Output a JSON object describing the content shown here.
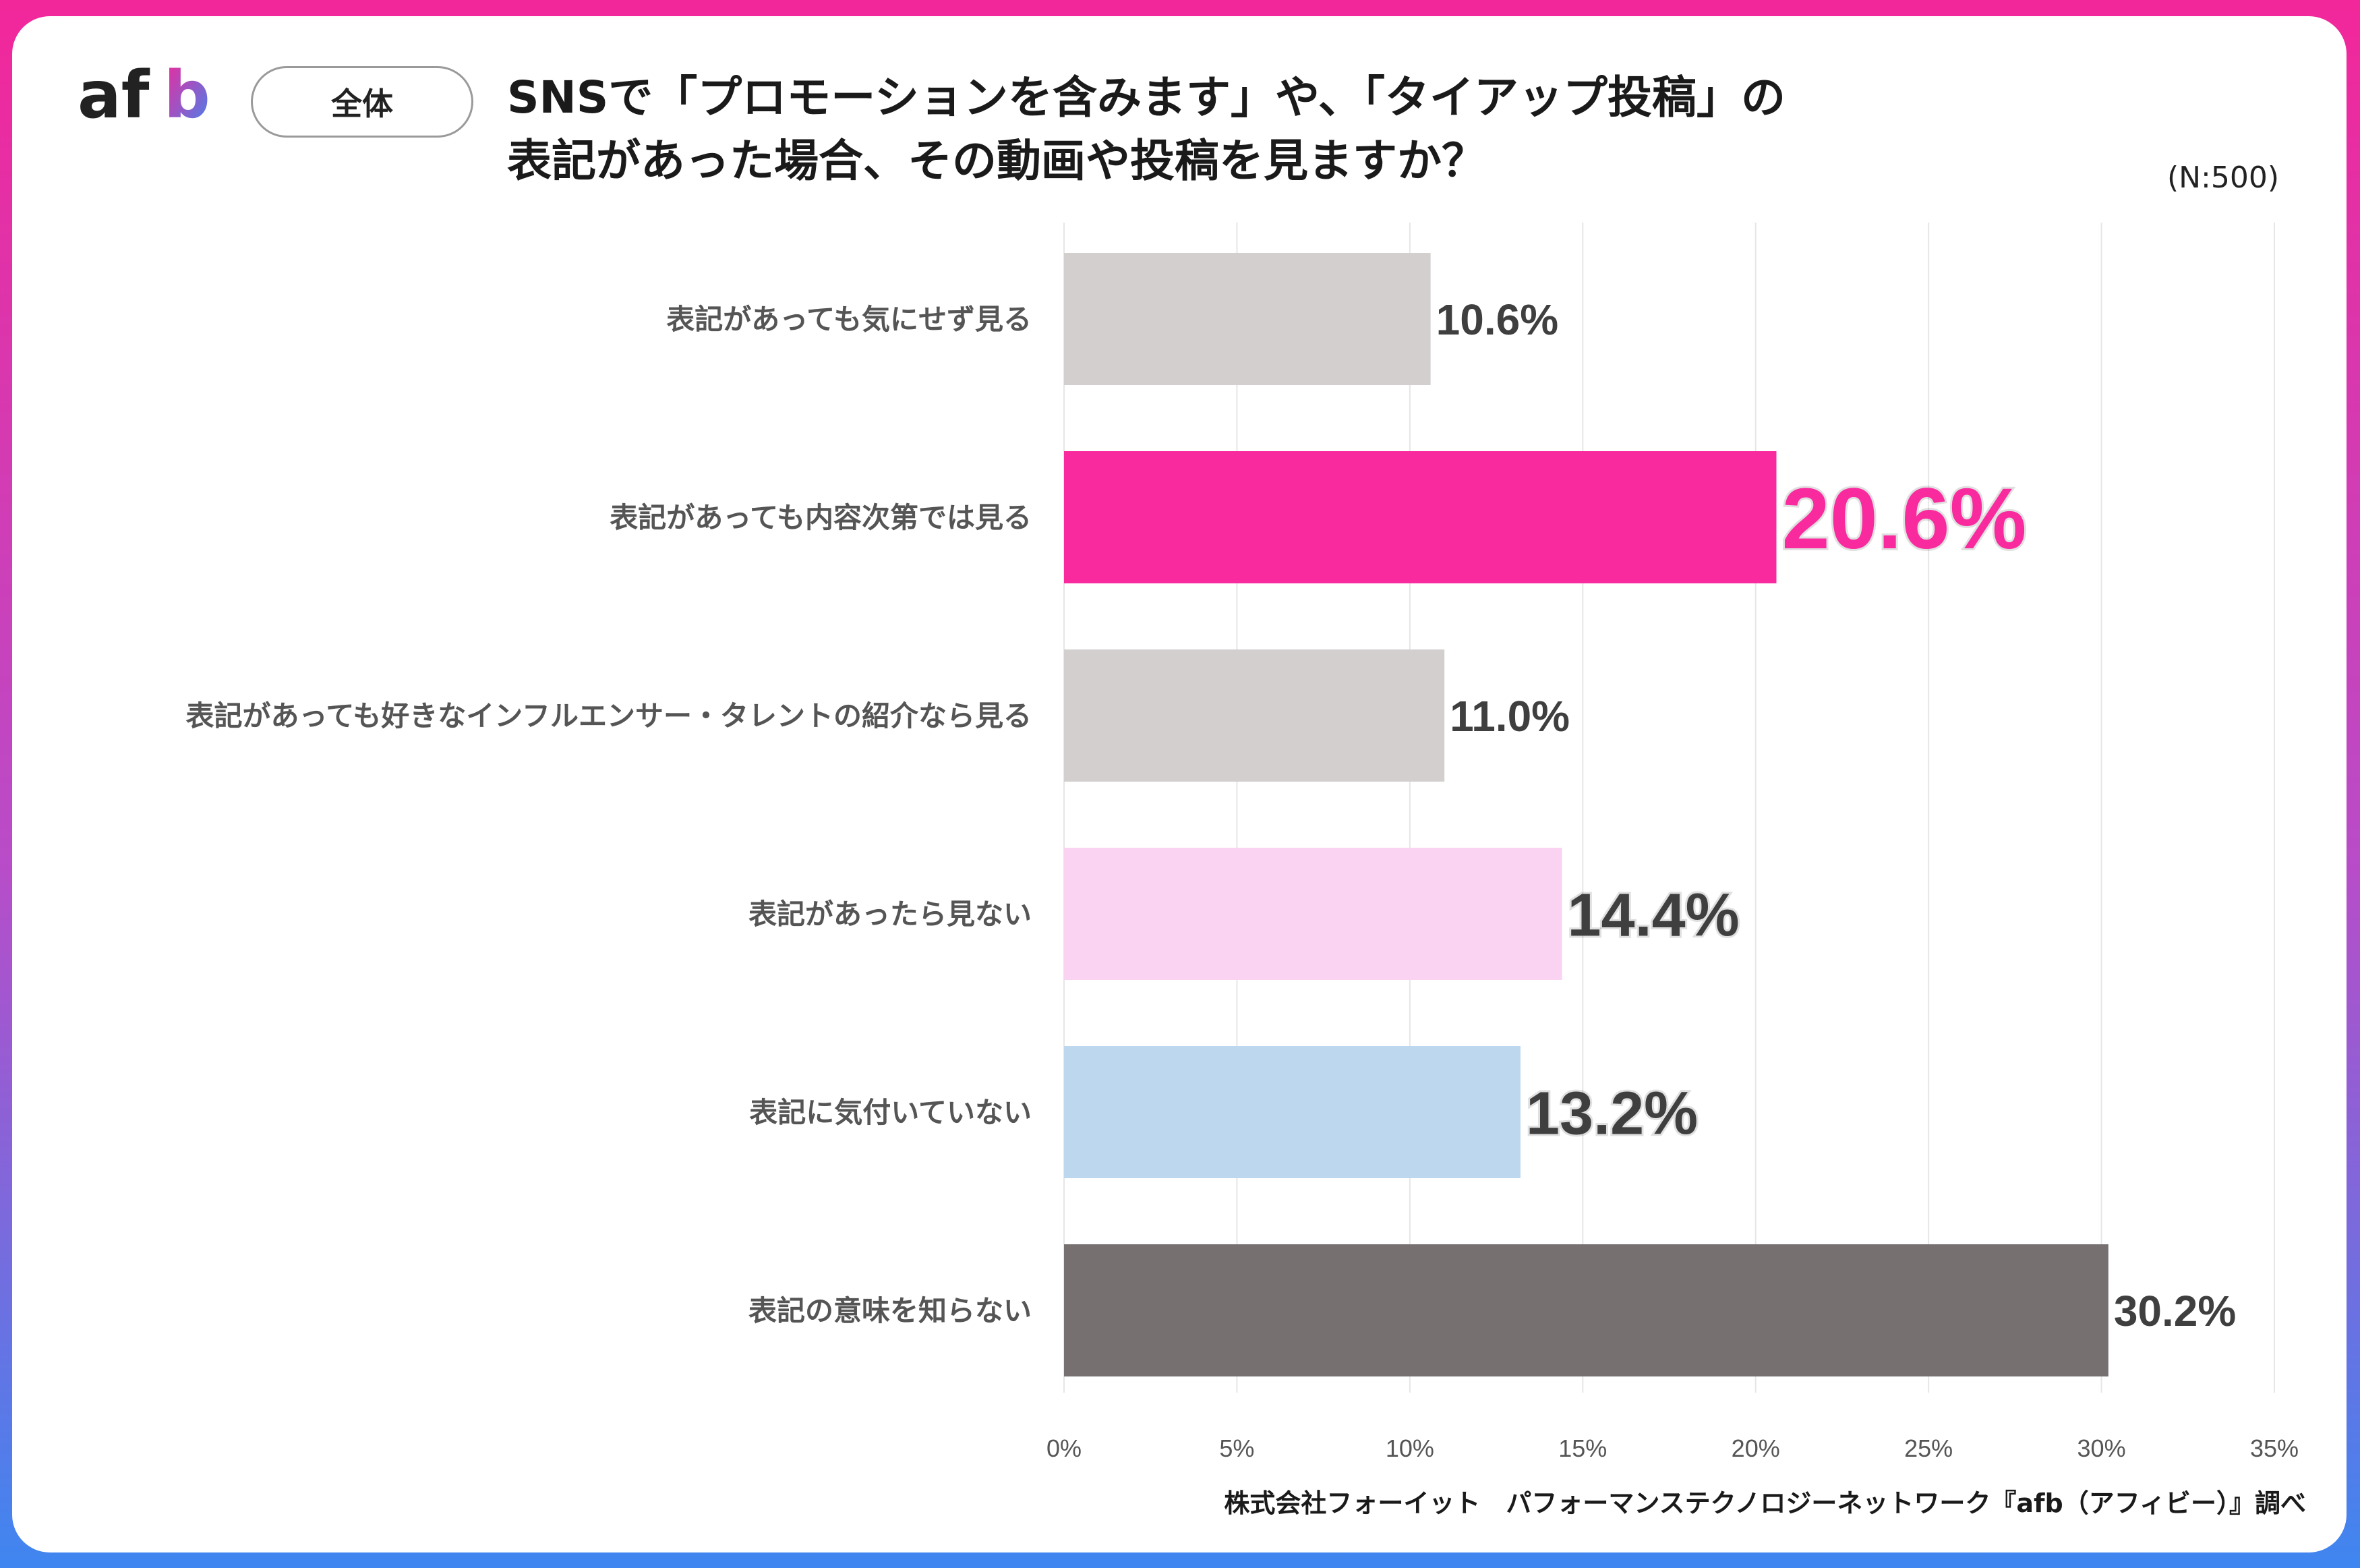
{
  "header": {
    "logo_text": "afb",
    "segment_badge": "全体",
    "title_line1": "SNSで「プロモーションを含みます」や、「タイアップ投稿」の",
    "title_line2": "表記があった場合、その動画や投稿を見ますか？",
    "sample_size": "(N:500)"
  },
  "footer": {
    "source": "株式会社フォーイット　パフォーマンステクノロジーネットワーク『afb（アフィビー）』調べ"
  },
  "colors": {
    "accent_pink": "#f82a9e",
    "light_gray": "#d3cfcf",
    "light_pink": "#f9d3f1",
    "light_blue": "#bdd7ee",
    "dark_gray": "#767070",
    "label_dark": "#3f3f3f"
  },
  "chart_data": {
    "type": "bar",
    "orientation": "horizontal",
    "title": "SNSで「プロモーションを含みます」や、「タイアップ投稿」の表記があった場合、その動画や投稿を見ますか？",
    "categories": [
      "表記があっても気にせず見る",
      "表記があっても内容次第では見る",
      "表記があっても好きなインフルエンサー・タレントの紹介なら見る",
      "表記があったら見ない",
      "表記に気付いていない",
      "表記の意味を知らない"
    ],
    "values": [
      10.6,
      20.6,
      11.0,
      14.4,
      13.2,
      30.2
    ],
    "value_labels": [
      "10.6%",
      "20.6%",
      "11.0%",
      "14.4%",
      "13.2%",
      "30.2%"
    ],
    "bar_colors": [
      "#d3cfcf",
      "#f82a9e",
      "#d3cfcf",
      "#f9d3f1",
      "#bdd7ee",
      "#767070"
    ],
    "label_colors": [
      "#3f3f3f",
      "#f82a9e",
      "#3f3f3f",
      "#3f3f3f",
      "#3f3f3f",
      "#3f3f3f"
    ],
    "label_emphasis": [
      "normal",
      "large",
      "normal",
      "medium",
      "medium",
      "normal"
    ],
    "xlim": [
      0,
      35
    ],
    "xticks": [
      0,
      5,
      10,
      15,
      20,
      25,
      30,
      35
    ],
    "xtick_labels": [
      "0%",
      "5%",
      "10%",
      "15%",
      "20%",
      "25%",
      "30%",
      "35%"
    ],
    "xlabel": "",
    "ylabel": "",
    "grid": true,
    "legend": "none"
  }
}
